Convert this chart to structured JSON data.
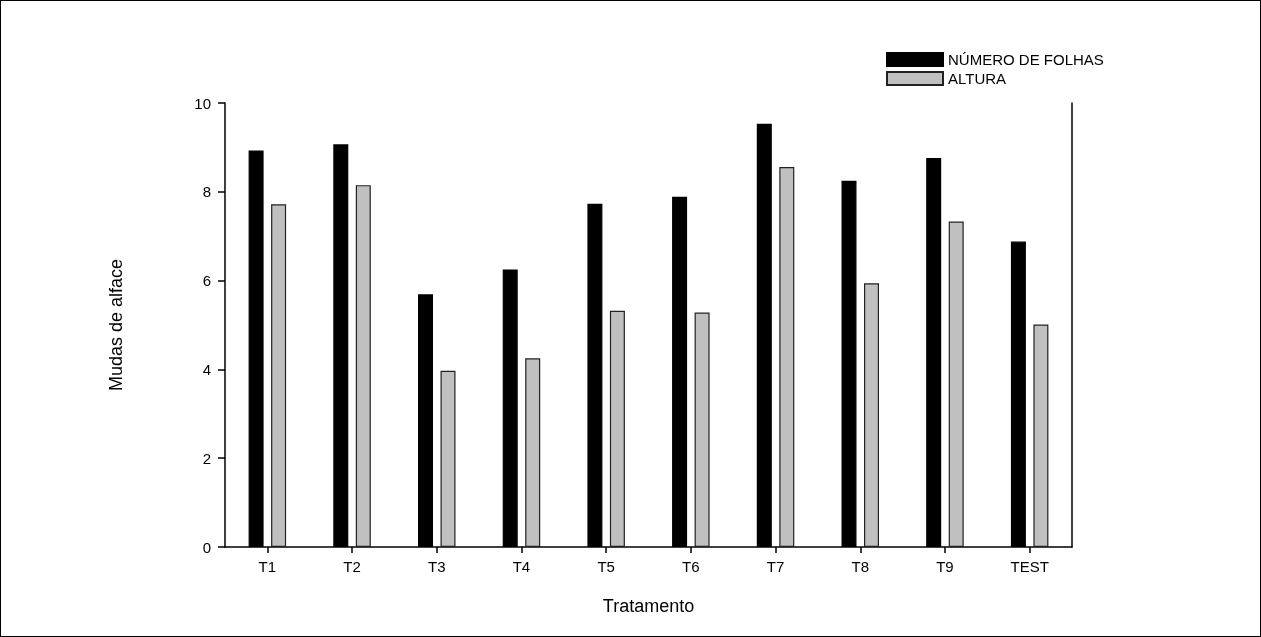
{
  "chart_data": {
    "type": "bar",
    "xlabel": "Tratamento",
    "ylabel": "Mudas de alface",
    "categories": [
      "T1",
      "T2",
      "T3",
      "T4",
      "T5",
      "T6",
      "T7",
      "T8",
      "T9",
      "TEST"
    ],
    "series": [
      {
        "name": "NÚMERO DE FOLHAS",
        "color": "#000000",
        "values": [
          8.93,
          9.07,
          5.69,
          6.25,
          7.73,
          7.89,
          9.53,
          8.25,
          8.76,
          6.88
        ]
      },
      {
        "name": "ALTURA",
        "color": "#c0c0c0",
        "values": [
          7.72,
          8.15,
          3.97,
          4.25,
          5.32,
          5.28,
          8.56,
          5.94,
          7.33,
          5.01
        ]
      }
    ],
    "ylim": [
      0,
      10
    ],
    "yticks": [
      0,
      2,
      4,
      6,
      8,
      10
    ],
    "grid": false,
    "legend": "top right"
  }
}
